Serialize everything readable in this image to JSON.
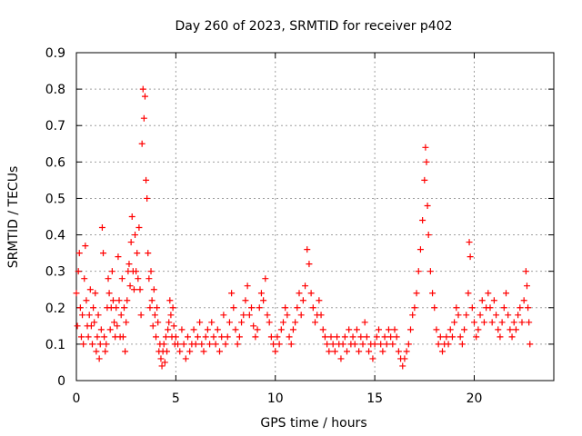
{
  "chart_data": {
    "type": "scatter",
    "title": "Day 260 of 2023, SRMTID for receiver p402",
    "xlabel": "GPS time / hours",
    "ylabel": "SRMTID / TECUs",
    "xlim": [
      0,
      24
    ],
    "ylim": [
      0,
      0.9
    ],
    "xticks": [
      0,
      5,
      10,
      15,
      20
    ],
    "yticks": [
      0,
      0.1,
      0.2,
      0.3,
      0.4,
      0.5,
      0.6,
      0.7,
      0.8,
      0.9
    ],
    "grid": true,
    "marker": "+",
    "marker_color": "#ff0000",
    "series": [
      {
        "name": "SRMTID",
        "points": [
          [
            0.0,
            0.24
          ],
          [
            0.05,
            0.15
          ],
          [
            0.1,
            0.3
          ],
          [
            0.15,
            0.35
          ],
          [
            0.2,
            0.2
          ],
          [
            0.25,
            0.12
          ],
          [
            0.3,
            0.18
          ],
          [
            0.35,
            0.1
          ],
          [
            0.4,
            0.28
          ],
          [
            0.45,
            0.37
          ],
          [
            0.5,
            0.22
          ],
          [
            0.55,
            0.15
          ],
          [
            0.6,
            0.12
          ],
          [
            0.65,
            0.18
          ],
          [
            0.7,
            0.25
          ],
          [
            0.75,
            0.15
          ],
          [
            0.8,
            0.1
          ],
          [
            0.85,
            0.2
          ],
          [
            0.9,
            0.16
          ],
          [
            0.95,
            0.24
          ],
          [
            1.0,
            0.08
          ],
          [
            1.05,
            0.12
          ],
          [
            1.1,
            0.18
          ],
          [
            1.15,
            0.06
          ],
          [
            1.2,
            0.1
          ],
          [
            1.25,
            0.14
          ],
          [
            1.3,
            0.42
          ],
          [
            1.35,
            0.35
          ],
          [
            1.4,
            0.12
          ],
          [
            1.45,
            0.08
          ],
          [
            1.5,
            0.1
          ],
          [
            1.55,
            0.2
          ],
          [
            1.6,
            0.28
          ],
          [
            1.65,
            0.24
          ],
          [
            1.7,
            0.14
          ],
          [
            1.75,
            0.2
          ],
          [
            1.8,
            0.3
          ],
          [
            1.85,
            0.22
          ],
          [
            1.9,
            0.16
          ],
          [
            1.95,
            0.12
          ],
          [
            2.0,
            0.2
          ],
          [
            2.05,
            0.15
          ],
          [
            2.1,
            0.34
          ],
          [
            2.15,
            0.22
          ],
          [
            2.2,
            0.12
          ],
          [
            2.25,
            0.18
          ],
          [
            2.3,
            0.28
          ],
          [
            2.35,
            0.12
          ],
          [
            2.4,
            0.2
          ],
          [
            2.45,
            0.08
          ],
          [
            2.5,
            0.16
          ],
          [
            2.55,
            0.22
          ],
          [
            2.6,
            0.3
          ],
          [
            2.65,
            0.32
          ],
          [
            2.7,
            0.26
          ],
          [
            2.75,
            0.38
          ],
          [
            2.8,
            0.45
          ],
          [
            2.85,
            0.3
          ],
          [
            2.9,
            0.25
          ],
          [
            2.95,
            0.4
          ],
          [
            3.0,
            0.3
          ],
          [
            3.05,
            0.35
          ],
          [
            3.1,
            0.28
          ],
          [
            3.15,
            0.42
          ],
          [
            3.2,
            0.25
          ],
          [
            3.25,
            0.18
          ],
          [
            3.3,
            0.65
          ],
          [
            3.35,
            0.8
          ],
          [
            3.4,
            0.72
          ],
          [
            3.45,
            0.78
          ],
          [
            3.5,
            0.55
          ],
          [
            3.55,
            0.5
          ],
          [
            3.6,
            0.35
          ],
          [
            3.65,
            0.28
          ],
          [
            3.7,
            0.2
          ],
          [
            3.75,
            0.3
          ],
          [
            3.8,
            0.22
          ],
          [
            3.85,
            0.15
          ],
          [
            3.9,
            0.25
          ],
          [
            3.95,
            0.18
          ],
          [
            4.0,
            0.12
          ],
          [
            4.05,
            0.2
          ],
          [
            4.1,
            0.16
          ],
          [
            4.15,
            0.08
          ],
          [
            4.2,
            0.1
          ],
          [
            4.25,
            0.06
          ],
          [
            4.3,
            0.04
          ],
          [
            4.35,
            0.08
          ],
          [
            4.4,
            0.1
          ],
          [
            4.45,
            0.05
          ],
          [
            4.5,
            0.12
          ],
          [
            4.55,
            0.08
          ],
          [
            4.6,
            0.14
          ],
          [
            4.65,
            0.16
          ],
          [
            4.7,
            0.22
          ],
          [
            4.75,
            0.18
          ],
          [
            4.8,
            0.12
          ],
          [
            4.85,
            0.2
          ],
          [
            4.9,
            0.15
          ],
          [
            4.95,
            0.1
          ],
          [
            5.0,
            0.12
          ],
          [
            5.1,
            0.1
          ],
          [
            5.2,
            0.08
          ],
          [
            5.3,
            0.14
          ],
          [
            5.4,
            0.1
          ],
          [
            5.5,
            0.06
          ],
          [
            5.6,
            0.12
          ],
          [
            5.7,
            0.08
          ],
          [
            5.8,
            0.1
          ],
          [
            5.9,
            0.14
          ],
          [
            6.0,
            0.1
          ],
          [
            6.1,
            0.12
          ],
          [
            6.2,
            0.16
          ],
          [
            6.3,
            0.1
          ],
          [
            6.4,
            0.08
          ],
          [
            6.5,
            0.12
          ],
          [
            6.6,
            0.14
          ],
          [
            6.7,
            0.1
          ],
          [
            6.8,
            0.16
          ],
          [
            6.9,
            0.12
          ],
          [
            7.0,
            0.1
          ],
          [
            7.1,
            0.14
          ],
          [
            7.2,
            0.08
          ],
          [
            7.3,
            0.12
          ],
          [
            7.4,
            0.18
          ],
          [
            7.5,
            0.1
          ],
          [
            7.6,
            0.12
          ],
          [
            7.7,
            0.16
          ],
          [
            7.8,
            0.24
          ],
          [
            7.9,
            0.2
          ],
          [
            8.0,
            0.14
          ],
          [
            8.1,
            0.1
          ],
          [
            8.2,
            0.12
          ],
          [
            8.3,
            0.16
          ],
          [
            8.4,
            0.18
          ],
          [
            8.5,
            0.22
          ],
          [
            8.6,
            0.26
          ],
          [
            8.7,
            0.18
          ],
          [
            8.8,
            0.2
          ],
          [
            8.9,
            0.15
          ],
          [
            9.0,
            0.12
          ],
          [
            9.1,
            0.14
          ],
          [
            9.2,
            0.2
          ],
          [
            9.3,
            0.24
          ],
          [
            9.4,
            0.22
          ],
          [
            9.5,
            0.28
          ],
          [
            9.6,
            0.18
          ],
          [
            9.7,
            0.16
          ],
          [
            9.8,
            0.12
          ],
          [
            9.9,
            0.1
          ],
          [
            10.0,
            0.08
          ],
          [
            10.1,
            0.12
          ],
          [
            10.2,
            0.1
          ],
          [
            10.3,
            0.14
          ],
          [
            10.4,
            0.16
          ],
          [
            10.5,
            0.2
          ],
          [
            10.6,
            0.18
          ],
          [
            10.7,
            0.12
          ],
          [
            10.8,
            0.1
          ],
          [
            10.9,
            0.14
          ],
          [
            11.0,
            0.16
          ],
          [
            11.1,
            0.2
          ],
          [
            11.2,
            0.24
          ],
          [
            11.3,
            0.18
          ],
          [
            11.4,
            0.22
          ],
          [
            11.5,
            0.26
          ],
          [
            11.6,
            0.36
          ],
          [
            11.7,
            0.32
          ],
          [
            11.8,
            0.24
          ],
          [
            11.9,
            0.2
          ],
          [
            12.0,
            0.16
          ],
          [
            12.1,
            0.18
          ],
          [
            12.2,
            0.22
          ],
          [
            12.3,
            0.18
          ],
          [
            12.4,
            0.14
          ],
          [
            12.5,
            0.12
          ],
          [
            12.6,
            0.1
          ],
          [
            12.7,
            0.08
          ],
          [
            12.8,
            0.12
          ],
          [
            12.9,
            0.1
          ],
          [
            13.0,
            0.08
          ],
          [
            13.1,
            0.12
          ],
          [
            13.2,
            0.1
          ],
          [
            13.3,
            0.06
          ],
          [
            13.4,
            0.1
          ],
          [
            13.5,
            0.12
          ],
          [
            13.6,
            0.08
          ],
          [
            13.7,
            0.14
          ],
          [
            13.8,
            0.1
          ],
          [
            13.9,
            0.12
          ],
          [
            14.0,
            0.1
          ],
          [
            14.1,
            0.14
          ],
          [
            14.2,
            0.08
          ],
          [
            14.3,
            0.12
          ],
          [
            14.4,
            0.1
          ],
          [
            14.5,
            0.16
          ],
          [
            14.6,
            0.12
          ],
          [
            14.7,
            0.08
          ],
          [
            14.8,
            0.1
          ],
          [
            14.9,
            0.06
          ],
          [
            15.0,
            0.1
          ],
          [
            15.1,
            0.12
          ],
          [
            15.2,
            0.14
          ],
          [
            15.3,
            0.1
          ],
          [
            15.4,
            0.08
          ],
          [
            15.5,
            0.12
          ],
          [
            15.6,
            0.1
          ],
          [
            15.7,
            0.14
          ],
          [
            15.8,
            0.12
          ],
          [
            15.9,
            0.1
          ],
          [
            16.0,
            0.14
          ],
          [
            16.1,
            0.12
          ],
          [
            16.2,
            0.08
          ],
          [
            16.3,
            0.06
          ],
          [
            16.4,
            0.04
          ],
          [
            16.5,
            0.06
          ],
          [
            16.6,
            0.08
          ],
          [
            16.7,
            0.1
          ],
          [
            16.8,
            0.14
          ],
          [
            16.9,
            0.18
          ],
          [
            17.0,
            0.2
          ],
          [
            17.1,
            0.24
          ],
          [
            17.2,
            0.3
          ],
          [
            17.3,
            0.36
          ],
          [
            17.4,
            0.44
          ],
          [
            17.5,
            0.55
          ],
          [
            17.55,
            0.64
          ],
          [
            17.6,
            0.6
          ],
          [
            17.65,
            0.48
          ],
          [
            17.7,
            0.4
          ],
          [
            17.8,
            0.3
          ],
          [
            17.9,
            0.24
          ],
          [
            18.0,
            0.2
          ],
          [
            18.1,
            0.14
          ],
          [
            18.2,
            0.1
          ],
          [
            18.3,
            0.12
          ],
          [
            18.4,
            0.08
          ],
          [
            18.5,
            0.1
          ],
          [
            18.6,
            0.12
          ],
          [
            18.7,
            0.1
          ],
          [
            18.8,
            0.14
          ],
          [
            18.9,
            0.12
          ],
          [
            19.0,
            0.16
          ],
          [
            19.1,
            0.2
          ],
          [
            19.2,
            0.18
          ],
          [
            19.3,
            0.12
          ],
          [
            19.4,
            0.1
          ],
          [
            19.5,
            0.14
          ],
          [
            19.6,
            0.18
          ],
          [
            19.7,
            0.24
          ],
          [
            19.75,
            0.38
          ],
          [
            19.8,
            0.34
          ],
          [
            19.9,
            0.2
          ],
          [
            20.0,
            0.16
          ],
          [
            20.1,
            0.12
          ],
          [
            20.2,
            0.14
          ],
          [
            20.3,
            0.18
          ],
          [
            20.4,
            0.22
          ],
          [
            20.5,
            0.16
          ],
          [
            20.6,
            0.2
          ],
          [
            20.7,
            0.24
          ],
          [
            20.8,
            0.2
          ],
          [
            20.9,
            0.16
          ],
          [
            21.0,
            0.22
          ],
          [
            21.1,
            0.18
          ],
          [
            21.2,
            0.14
          ],
          [
            21.3,
            0.12
          ],
          [
            21.4,
            0.16
          ],
          [
            21.5,
            0.2
          ],
          [
            21.6,
            0.24
          ],
          [
            21.7,
            0.18
          ],
          [
            21.8,
            0.14
          ],
          [
            21.9,
            0.12
          ],
          [
            22.0,
            0.16
          ],
          [
            22.1,
            0.14
          ],
          [
            22.2,
            0.18
          ],
          [
            22.3,
            0.2
          ],
          [
            22.4,
            0.16
          ],
          [
            22.5,
            0.22
          ],
          [
            22.6,
            0.3
          ],
          [
            22.65,
            0.26
          ],
          [
            22.7,
            0.2
          ],
          [
            22.75,
            0.16
          ],
          [
            22.8,
            0.1
          ]
        ]
      }
    ]
  }
}
